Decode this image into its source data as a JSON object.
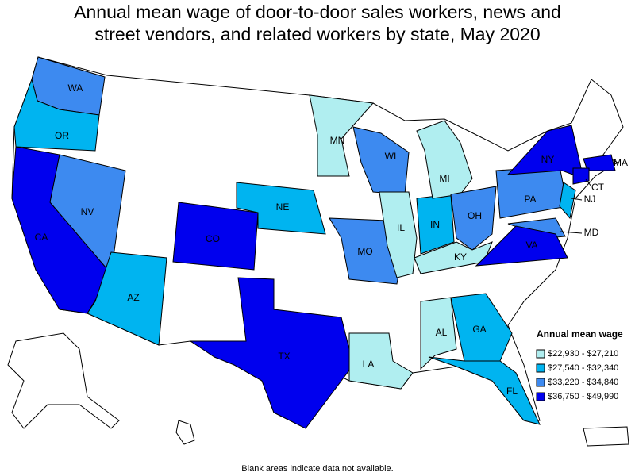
{
  "title": [
    "Annual mean wage of door-to-door sales workers, news and",
    "street vendors, and related workers by state, May 2020"
  ],
  "legend": {
    "title": "Annual mean wage",
    "bins": [
      {
        "label": "$22,930 - $27,210",
        "color": "#b0eef0",
        "states": [
          "MN",
          "MI",
          "IL",
          "KY",
          "AL",
          "LA"
        ]
      },
      {
        "label": "$27,540 - $32,340",
        "color": "#00b4f0",
        "states": [
          "OR",
          "NE",
          "AZ",
          "IN",
          "GA",
          "FL",
          "NJ"
        ]
      },
      {
        "label": "$33,220 - $34,840",
        "color": "#3d8af0",
        "states": [
          "WA",
          "NV",
          "WI",
          "MO",
          "OH",
          "PA",
          "MD"
        ]
      },
      {
        "label": "$36,750 - $49,990",
        "color": "#0000ee",
        "states": [
          "CA",
          "CO",
          "TX",
          "NY",
          "VA",
          "MA",
          "CT"
        ]
      }
    ]
  },
  "note": "Blank areas indicate data not available."
}
